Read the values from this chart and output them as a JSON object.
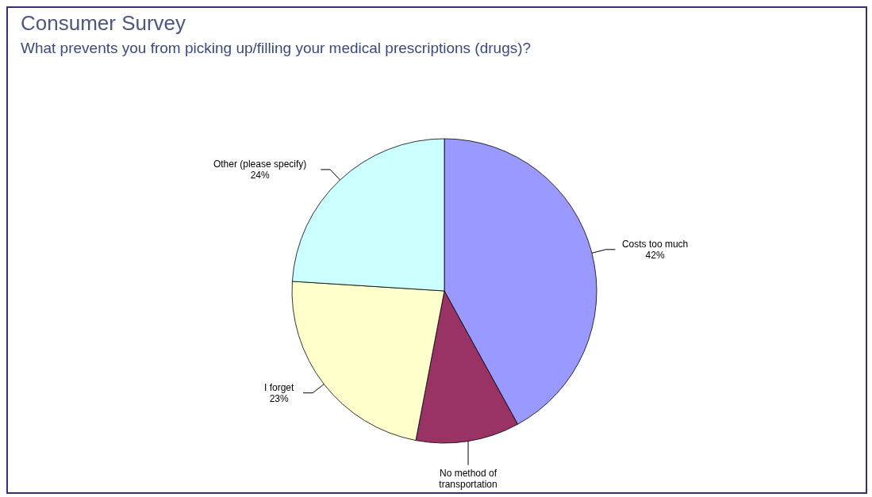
{
  "chart_data": {
    "type": "pie",
    "title": "Consumer Survey",
    "subtitle": "What prevents you from picking up/filling your medical prescriptions (drugs)?",
    "categories": [
      "Costs too much",
      "No method of transportation",
      "I forget",
      "Other (please specify)"
    ],
    "values": [
      42,
      11,
      23,
      24
    ],
    "colors": [
      "#9999ff",
      "#993366",
      "#ffffcc",
      "#ccffff"
    ],
    "value_labels": [
      "42%",
      null,
      "23%",
      "24%"
    ],
    "legend": false
  }
}
